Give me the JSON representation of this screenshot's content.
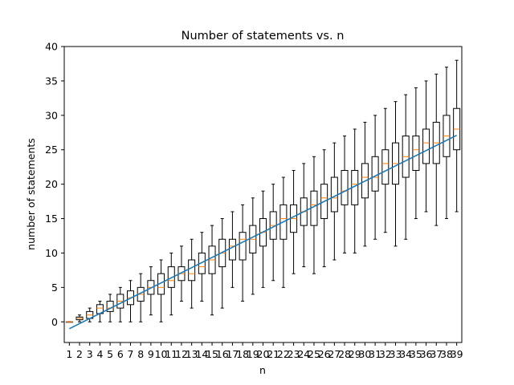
{
  "chart_data": {
    "type": "box",
    "title": "Number of statements vs. n",
    "xlabel": "n",
    "ylabel": "number of statements",
    "x_range": [
      0.5,
      39.5
    ],
    "ylim": [
      -3,
      40
    ],
    "yticks": [
      0,
      5,
      10,
      15,
      20,
      25,
      30,
      35,
      40
    ],
    "grid": false,
    "colors": {
      "box": "#000000",
      "median": "#ff7f0e",
      "fit_line": "#1f77b4"
    },
    "categories": [
      "1",
      "2",
      "3",
      "4",
      "5",
      "6",
      "7",
      "8",
      "9",
      "10",
      "11",
      "12",
      "13",
      "14",
      "15",
      "16",
      "17",
      "18",
      "19",
      "20",
      "21",
      "22",
      "23",
      "24",
      "25",
      "26",
      "27",
      "28",
      "29",
      "30",
      "31",
      "32",
      "33",
      "34",
      "35",
      "36",
      "37",
      "38",
      "39"
    ],
    "boxes": [
      {
        "n": 1,
        "whislo": 0,
        "q1": 0,
        "med": 0,
        "q3": 0,
        "whishi": 0
      },
      {
        "n": 2,
        "whislo": 0,
        "q1": 0.3,
        "med": 0.5,
        "q3": 0.7,
        "whishi": 1
      },
      {
        "n": 3,
        "whislo": 0,
        "q1": 0.5,
        "med": 1,
        "q3": 1.5,
        "whishi": 2
      },
      {
        "n": 4,
        "whislo": 0,
        "q1": 1.2,
        "med": 2,
        "q3": 2.5,
        "whishi": 3
      },
      {
        "n": 5,
        "whislo": 0,
        "q1": 1.5,
        "med": 2,
        "q3": 3,
        "whishi": 4
      },
      {
        "n": 6,
        "whislo": 0,
        "q1": 2,
        "med": 3,
        "q3": 4,
        "whishi": 5
      },
      {
        "n": 7,
        "whislo": 0,
        "q1": 2.5,
        "med": 3.5,
        "q3": 4.5,
        "whishi": 6
      },
      {
        "n": 8,
        "whislo": 0,
        "q1": 3,
        "med": 4,
        "q3": 5,
        "whishi": 7
      },
      {
        "n": 9,
        "whislo": 1,
        "q1": 4,
        "med": 5,
        "q3": 6,
        "whishi": 8
      },
      {
        "n": 10,
        "whislo": 0,
        "q1": 4,
        "med": 5,
        "q3": 7,
        "whishi": 9
      },
      {
        "n": 11,
        "whislo": 1,
        "q1": 5,
        "med": 6,
        "q3": 8,
        "whishi": 10
      },
      {
        "n": 12,
        "whislo": 3,
        "q1": 6,
        "med": 7,
        "q3": 8,
        "whishi": 11
      },
      {
        "n": 13,
        "whislo": 2,
        "q1": 6,
        "med": 7,
        "q3": 9,
        "whishi": 12
      },
      {
        "n": 14,
        "whislo": 3,
        "q1": 7,
        "med": 8,
        "q3": 10,
        "whishi": 13
      },
      {
        "n": 15,
        "whislo": 1,
        "q1": 7,
        "med": 9,
        "q3": 11,
        "whishi": 14
      },
      {
        "n": 16,
        "whislo": 2,
        "q1": 8,
        "med": 10,
        "q3": 12,
        "whishi": 15
      },
      {
        "n": 17,
        "whislo": 5,
        "q1": 9,
        "med": 11,
        "q3": 12,
        "whishi": 16
      },
      {
        "n": 18,
        "whislo": 3,
        "q1": 9,
        "med": 12,
        "q3": 13,
        "whishi": 17
      },
      {
        "n": 19,
        "whislo": 4,
        "q1": 10,
        "med": 12,
        "q3": 14,
        "whishi": 18
      },
      {
        "n": 20,
        "whislo": 5,
        "q1": 11,
        "med": 13,
        "q3": 15,
        "whishi": 19
      },
      {
        "n": 21,
        "whislo": 6,
        "q1": 12,
        "med": 14,
        "q3": 16,
        "whishi": 20
      },
      {
        "n": 22,
        "whislo": 5,
        "q1": 12,
        "med": 15,
        "q3": 17,
        "whishi": 21
      },
      {
        "n": 23,
        "whislo": 7,
        "q1": 13,
        "med": 15,
        "q3": 17,
        "whishi": 22
      },
      {
        "n": 24,
        "whislo": 8,
        "q1": 14,
        "med": 16,
        "q3": 18,
        "whishi": 23
      },
      {
        "n": 25,
        "whislo": 7,
        "q1": 14,
        "med": 17,
        "q3": 19,
        "whishi": 24
      },
      {
        "n": 26,
        "whislo": 8,
        "q1": 15,
        "med": 18,
        "q3": 20,
        "whishi": 25
      },
      {
        "n": 27,
        "whislo": 9,
        "q1": 16,
        "med": 18,
        "q3": 21,
        "whishi": 26
      },
      {
        "n": 28,
        "whislo": 10,
        "q1": 17,
        "med": 19,
        "q3": 22,
        "whishi": 27
      },
      {
        "n": 29,
        "whislo": 10,
        "q1": 17,
        "med": 20,
        "q3": 22,
        "whishi": 28
      },
      {
        "n": 30,
        "whislo": 11,
        "q1": 18,
        "med": 21,
        "q3": 23,
        "whishi": 29
      },
      {
        "n": 31,
        "whislo": 12,
        "q1": 19,
        "med": 21,
        "q3": 24,
        "whishi": 30
      },
      {
        "n": 32,
        "whislo": 13,
        "q1": 20,
        "med": 23,
        "q3": 25,
        "whishi": 31
      },
      {
        "n": 33,
        "whislo": 11,
        "q1": 20,
        "med": 23,
        "q3": 26,
        "whishi": 32
      },
      {
        "n": 34,
        "whislo": 12,
        "q1": 21,
        "med": 24,
        "q3": 27,
        "whishi": 33
      },
      {
        "n": 35,
        "whislo": 15,
        "q1": 22,
        "med": 25,
        "q3": 27,
        "whishi": 34
      },
      {
        "n": 36,
        "whislo": 16,
        "q1": 23,
        "med": 26,
        "q3": 28,
        "whishi": 35
      },
      {
        "n": 37,
        "whislo": 14,
        "q1": 23,
        "med": 26,
        "q3": 29,
        "whishi": 36
      },
      {
        "n": 38,
        "whislo": 15,
        "q1": 24,
        "med": 27,
        "q3": 30,
        "whishi": 37
      },
      {
        "n": 39,
        "whislo": 16,
        "q1": 25,
        "med": 28,
        "q3": 31,
        "whishi": 38
      }
    ],
    "fit_line": {
      "x": [
        1,
        39
      ],
      "y": [
        -1,
        27.1
      ]
    }
  }
}
